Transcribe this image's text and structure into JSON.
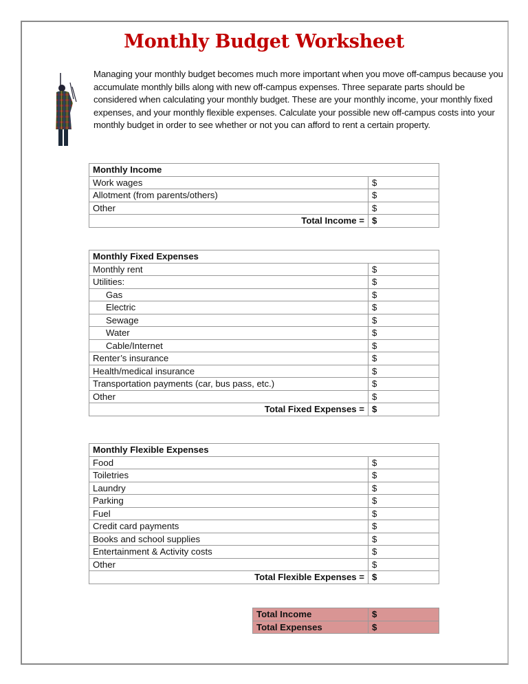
{
  "title": "Monthly Budget Worksheet",
  "intro": "Managing your monthly budget becomes much more important when you move off-campus because you accumulate monthly bills along with new off-campus expenses. Three separate parts should be considered when calculating your monthly budget. These are your monthly income, your monthly fixed expenses, and your monthly flexible expenses. Calculate your possible new off-campus costs into your monthly budget in order to see whether or not you can afford to rent a certain property.",
  "currency": "$",
  "summary_color": "#d99594",
  "title_color": "#c00000",
  "sections": [
    {
      "heading": "Monthly Income",
      "items": [
        {
          "label": "Work wages",
          "indent": false
        },
        {
          "label": "Allotment (from parents/others)",
          "indent": false
        },
        {
          "label": "Other",
          "indent": false
        }
      ],
      "total_label": "Total Income ="
    },
    {
      "heading": "Monthly Fixed Expenses",
      "items": [
        {
          "label": "Monthly rent",
          "indent": false
        },
        {
          "label": "Utilities:",
          "indent": false
        },
        {
          "label": "Gas",
          "indent": true
        },
        {
          "label": "Electric",
          "indent": true
        },
        {
          "label": "Sewage",
          "indent": true
        },
        {
          "label": "Water",
          "indent": true
        },
        {
          "label": "Cable/Internet",
          "indent": true
        },
        {
          "label": "Renter’s insurance",
          "indent": false
        },
        {
          "label": "Health/medical insurance",
          "indent": false
        },
        {
          "label": "Transportation payments (car, bus pass, etc.)",
          "indent": false
        },
        {
          "label": "Other",
          "indent": false
        }
      ],
      "total_label": "Total Fixed Expenses ="
    },
    {
      "heading": "Monthly Flexible Expenses",
      "items": [
        {
          "label": "Food",
          "indent": false
        },
        {
          "label": "Toiletries",
          "indent": false
        },
        {
          "label": "Laundry",
          "indent": false
        },
        {
          "label": "Parking",
          "indent": false
        },
        {
          "label": "Fuel",
          "indent": false
        },
        {
          "label": "Credit card payments",
          "indent": false
        },
        {
          "label": "Books and school supplies",
          "indent": false
        },
        {
          "label": "Entertainment & Activity costs",
          "indent": false
        },
        {
          "label": "Other",
          "indent": false
        }
      ],
      "total_label": "Total Flexible Expenses ="
    }
  ],
  "summary": [
    {
      "label": "Total Income"
    },
    {
      "label": "Total Expenses"
    }
  ]
}
